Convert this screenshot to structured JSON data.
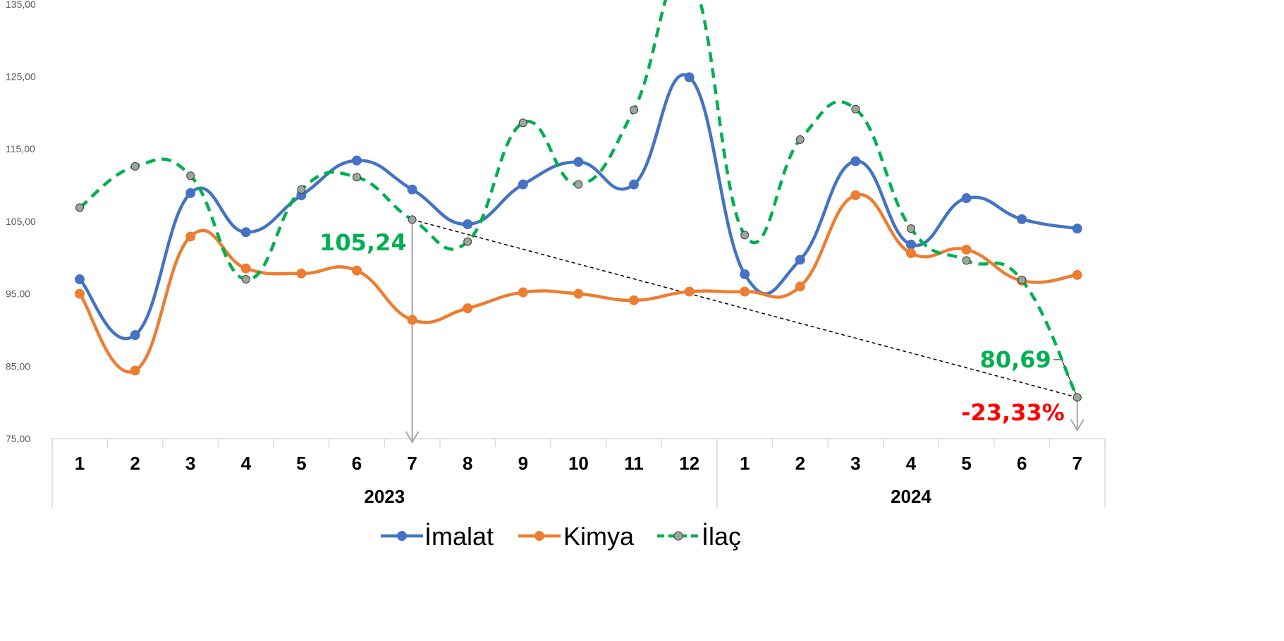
{
  "chart_data": {
    "type": "line",
    "title": "",
    "xlabel": "",
    "ylabel": "",
    "ylim": [
      75,
      135
    ],
    "y_ticks": [
      "75,00",
      "85,00",
      "95,00",
      "105,00",
      "115,00",
      "125,00",
      "135,00"
    ],
    "y_tick_values": [
      75,
      85,
      95,
      105,
      115,
      125,
      135
    ],
    "categories": [
      "1",
      "2",
      "3",
      "4",
      "5",
      "6",
      "7",
      "8",
      "9",
      "10",
      "11",
      "12",
      "1",
      "2",
      "3",
      "4",
      "5",
      "6",
      "7"
    ],
    "year_groups": [
      {
        "label": "2023",
        "count": 12
      },
      {
        "label": "2024",
        "count": 7
      }
    ],
    "grid": false,
    "legend_position": "bottom",
    "series": [
      {
        "name": "İmalat",
        "color": "#4472C4",
        "style": "solid",
        "marker": "circle",
        "values": [
          97.0,
          89.3,
          108.9,
          103.5,
          108.6,
          113.4,
          109.4,
          104.6,
          110.1,
          113.2,
          110.1,
          124.9,
          97.7,
          99.7,
          113.3,
          101.8,
          108.2,
          105.3,
          104.0
        ]
      },
      {
        "name": "Kimya",
        "color": "#ED7D31",
        "style": "solid",
        "marker": "circle",
        "values": [
          95.0,
          84.4,
          102.9,
          98.5,
          97.8,
          98.2,
          91.4,
          93.0,
          95.2,
          95.0,
          94.1,
          95.3,
          95.3,
          96.0,
          108.6,
          100.6,
          101.1,
          96.8,
          97.6
        ]
      },
      {
        "name": "İlaç",
        "color": "#00B050",
        "style": "dashed",
        "marker": "circle-gray",
        "values": [
          106.9,
          112.6,
          111.3,
          97.0,
          109.4,
          111.1,
          105.24,
          102.2,
          118.6,
          110.1,
          120.4,
          139.0,
          103.1,
          116.3,
          120.5,
          104.0,
          99.6,
          96.9,
          80.69
        ]
      }
    ],
    "annotations": {
      "start_label": "105,24",
      "end_label": "80,69",
      "change_label": "-23,33%",
      "start_index": 6,
      "end_index": 18,
      "label_color": "#00B050",
      "change_color": "#FF0000"
    }
  }
}
